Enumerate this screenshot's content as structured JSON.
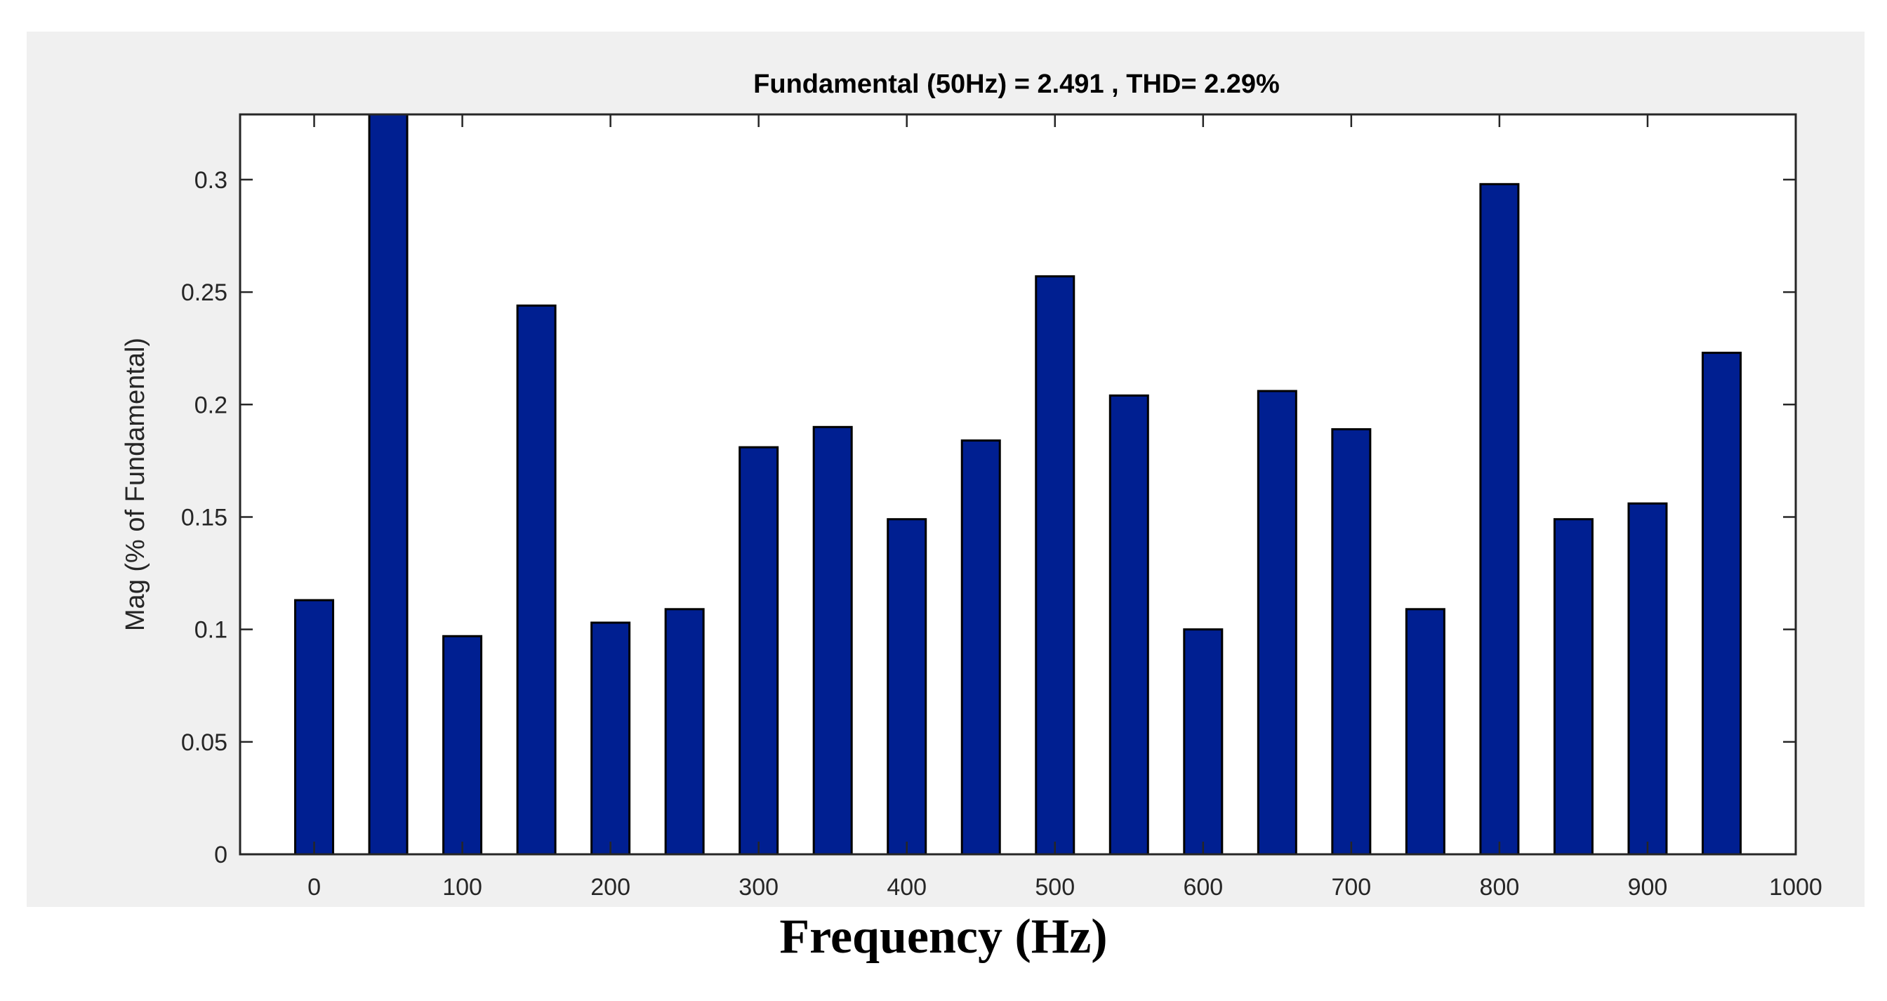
{
  "chart_data": {
    "type": "bar",
    "title": "Fundamental (50Hz) = 2.491 , THD= 2.29%",
    "xlabel": "Frequency (Hz)",
    "ylabel": "Mag (% of Fundamental)",
    "x": [
      0,
      50,
      100,
      150,
      200,
      250,
      300,
      350,
      400,
      450,
      500,
      550,
      600,
      650,
      700,
      750,
      800,
      850,
      900,
      950
    ],
    "values": [
      0.113,
      0.33,
      0.097,
      0.244,
      0.103,
      0.109,
      0.181,
      0.19,
      0.149,
      0.184,
      0.257,
      0.204,
      0.1,
      0.206,
      0.189,
      0.109,
      0.298,
      0.149,
      0.156,
      0.223
    ],
    "xlim": [
      -50,
      1000
    ],
    "ylim": [
      0,
      0.329
    ],
    "xticks": [
      "0",
      "100",
      "200",
      "300",
      "400",
      "500",
      "600",
      "700",
      "800",
      "900",
      "1000"
    ],
    "yticks": [
      "0",
      "0.05",
      "0.1",
      "0.15",
      "0.2",
      "0.25",
      "0.3"
    ],
    "grid": false,
    "colors": {
      "bar": "#001f91",
      "edge": "#000000",
      "panel": "#f0f0f0",
      "axes": "#ffffff"
    }
  }
}
